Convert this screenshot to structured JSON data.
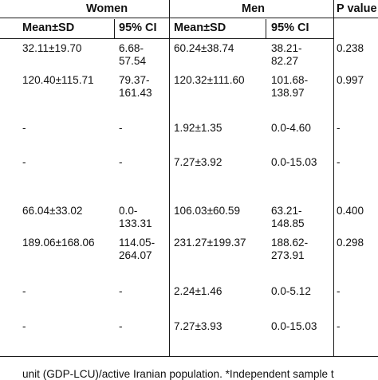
{
  "groups": {
    "women": "Women",
    "men": "Men",
    "p_value": "P value"
  },
  "columns": {
    "women_mean": "Mean±SD",
    "women_ci": "95% CI",
    "men_mean": "Mean±SD",
    "men_ci": "95% CI"
  },
  "rows": [
    {
      "w_mean": "32.11±19.70",
      "w_ci": [
        "6.68-",
        "57.54"
      ],
      "m_mean": "60.24±38.74",
      "m_ci": [
        "38.21-",
        "82.27"
      ],
      "p": "0.238"
    },
    {
      "w_mean": "120.40±115.71",
      "w_ci": [
        "79.37-",
        "161.43"
      ],
      "m_mean": "120.32±111.60",
      "m_ci": [
        "101.68-",
        "138.97"
      ],
      "p": "0.997"
    },
    {
      "w_mean": "-",
      "w_ci": [
        "-",
        ""
      ],
      "m_mean": "1.92±1.35",
      "m_ci": [
        "0.0-4.60",
        ""
      ],
      "p": "-"
    },
    {
      "w_mean": "-",
      "w_ci": [
        "-",
        ""
      ],
      "m_mean": "7.27±3.92",
      "m_ci": [
        "0.0-15.03",
        ""
      ],
      "p": "-"
    },
    {
      "w_mean": "66.04±33.02",
      "w_ci": [
        "0.0-",
        "133.31"
      ],
      "m_mean": "106.03±60.59",
      "m_ci": [
        "63.21-",
        "148.85"
      ],
      "p": "0.400"
    },
    {
      "w_mean": "189.06±168.06",
      "w_ci": [
        "114.05-",
        "264.07"
      ],
      "m_mean": "231.27±199.37",
      "m_ci": [
        "188.62-",
        "273.91"
      ],
      "p": "0.298"
    },
    {
      "w_mean": "-",
      "w_ci": [
        "-",
        ""
      ],
      "m_mean": "2.24±1.46",
      "m_ci": [
        "0.0-5.12",
        ""
      ],
      "p": "-"
    },
    {
      "w_mean": "-",
      "w_ci": [
        "-",
        ""
      ],
      "m_mean": "7.27±3.93",
      "m_ci": [
        "0.0-15.03",
        ""
      ],
      "p": "-"
    }
  ],
  "footnote": "unit (GDP-LCU)/active Iranian population. *Independent sample t"
}
